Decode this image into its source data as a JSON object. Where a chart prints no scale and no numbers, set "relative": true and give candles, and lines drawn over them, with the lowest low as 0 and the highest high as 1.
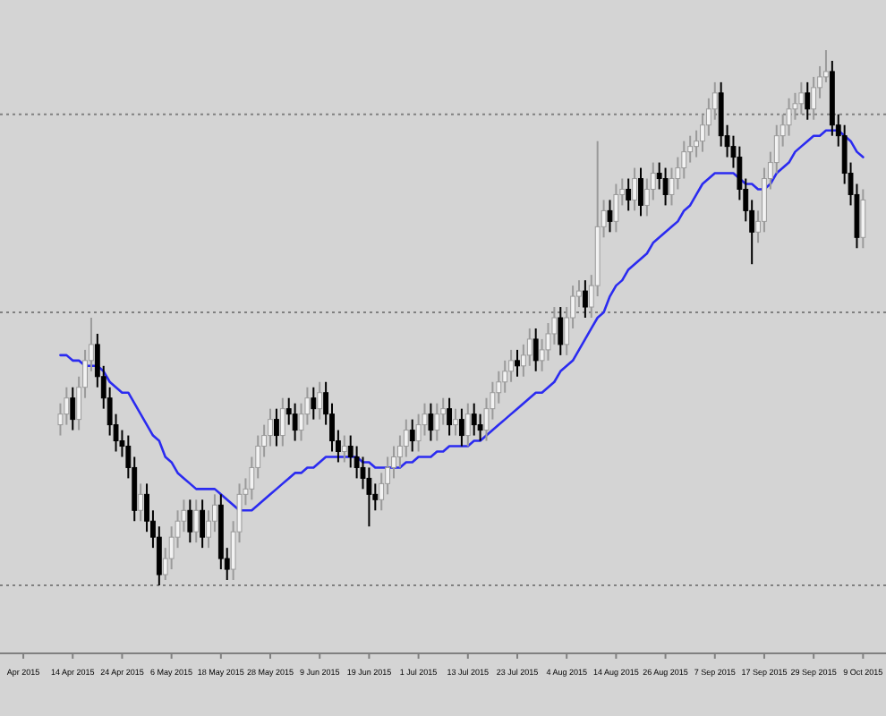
{
  "chart_data": {
    "type": "candlestick",
    "relative": true,
    "categories": [
      "Apr 2015",
      null,
      null,
      null,
      null,
      null,
      null,
      null,
      "14 Apr 2015",
      null,
      null,
      null,
      null,
      null,
      null,
      null,
      "24 Apr 2015",
      null,
      null,
      null,
      null,
      null,
      null,
      null,
      "6 May 2015",
      null,
      null,
      null,
      null,
      null,
      null,
      null,
      "18 May 2015",
      null,
      null,
      null,
      null,
      null,
      null,
      null,
      "28 May 2015",
      null,
      null,
      null,
      null,
      null,
      null,
      null,
      "9 Jun 2015",
      null,
      null,
      null,
      null,
      null,
      null,
      null,
      "19 Jun 2015",
      null,
      null,
      null,
      null,
      null,
      null,
      null,
      "1 Jul 2015",
      null,
      null,
      null,
      null,
      null,
      null,
      null,
      "13 Jul 2015",
      null,
      null,
      null,
      null,
      null,
      null,
      null,
      "23 Jul 2015",
      null,
      null,
      null,
      null,
      null,
      null,
      null,
      "4 Aug 2015",
      null,
      null,
      null,
      null,
      null,
      null,
      null,
      "14 Aug 2015",
      null,
      null,
      null,
      null,
      null,
      null,
      null,
      "26 Aug 2015",
      null,
      null,
      null,
      null,
      null,
      null,
      null,
      "7 Sep 2015",
      null,
      null,
      null,
      null,
      null,
      null,
      null,
      "17 Sep 2015",
      null,
      null,
      null,
      null,
      null,
      null,
      null,
      "29 Sep 2015",
      null,
      null,
      null,
      null,
      null,
      null,
      null,
      "9 Oct 2015"
    ],
    "ohlc": [
      null,
      null,
      null,
      null,
      null,
      null,
      [
        0.3,
        0.34,
        0.28,
        0.32
      ],
      [
        0.32,
        0.37,
        0.3,
        0.35
      ],
      [
        0.35,
        0.37,
        0.29,
        0.31
      ],
      [
        0.31,
        0.39,
        0.29,
        0.37
      ],
      [
        0.37,
        0.44,
        0.35,
        0.42
      ],
      [
        0.42,
        0.5,
        0.4,
        0.45
      ],
      [
        0.45,
        0.47,
        0.37,
        0.39
      ],
      [
        0.39,
        0.41,
        0.33,
        0.35
      ],
      [
        0.35,
        0.37,
        0.28,
        0.3
      ],
      [
        0.3,
        0.32,
        0.25,
        0.27
      ],
      [
        0.27,
        0.29,
        0.24,
        0.26
      ],
      [
        0.26,
        0.28,
        0.2,
        0.22
      ],
      [
        0.22,
        0.24,
        0.12,
        0.14
      ],
      [
        0.14,
        0.19,
        0.12,
        0.17
      ],
      [
        0.17,
        0.19,
        0.1,
        0.12
      ],
      [
        0.12,
        0.14,
        0.07,
        0.09
      ],
      [
        0.09,
        0.11,
        0,
        0.02
      ],
      [
        0.02,
        0.07,
        0.01,
        0.05
      ],
      [
        0.05,
        0.11,
        0.03,
        0.09
      ],
      [
        0.09,
        0.14,
        0.07,
        0.12
      ],
      [
        0.12,
        0.16,
        0.1,
        0.14
      ],
      [
        0.14,
        0.16,
        0.08,
        0.1
      ],
      [
        0.1,
        0.16,
        0.08,
        0.14
      ],
      [
        0.14,
        0.16,
        0.07,
        0.09
      ],
      [
        0.09,
        0.14,
        0.07,
        0.12
      ],
      [
        0.12,
        0.17,
        0.1,
        0.15
      ],
      [
        0.15,
        0.17,
        0.03,
        0.05
      ],
      [
        0.05,
        0.07,
        0.01,
        0.03
      ],
      [
        0.03,
        0.12,
        0.01,
        0.1
      ],
      [
        0.1,
        0.19,
        0.08,
        0.17
      ],
      [
        0.17,
        0.2,
        0.15,
        0.18
      ],
      [
        0.18,
        0.24,
        0.16,
        0.22
      ],
      [
        0.22,
        0.28,
        0.2,
        0.26
      ],
      [
        0.26,
        0.3,
        0.24,
        0.28
      ],
      [
        0.28,
        0.33,
        0.26,
        0.31
      ],
      [
        0.31,
        0.33,
        0.26,
        0.28
      ],
      [
        0.28,
        0.35,
        0.26,
        0.33
      ],
      [
        0.33,
        0.35,
        0.3,
        0.32
      ],
      [
        0.32,
        0.34,
        0.27,
        0.29
      ],
      [
        0.29,
        0.34,
        0.27,
        0.32
      ],
      [
        0.32,
        0.37,
        0.3,
        0.35
      ],
      [
        0.35,
        0.37,
        0.31,
        0.33
      ],
      [
        0.33,
        0.38,
        0.31,
        0.36
      ],
      [
        0.36,
        0.38,
        0.3,
        0.32
      ],
      [
        0.32,
        0.34,
        0.25,
        0.27
      ],
      [
        0.27,
        0.29,
        0.23,
        0.25
      ],
      [
        0.25,
        0.28,
        0.23,
        0.26
      ],
      [
        0.26,
        0.28,
        0.22,
        0.24
      ],
      [
        0.24,
        0.26,
        0.2,
        0.22
      ],
      [
        0.22,
        0.24,
        0.18,
        0.2
      ],
      [
        0.2,
        0.22,
        0.11,
        0.17
      ],
      [
        0.17,
        0.19,
        0.14,
        0.16
      ],
      [
        0.16,
        0.21,
        0.14,
        0.19
      ],
      [
        0.19,
        0.24,
        0.17,
        0.22
      ],
      [
        0.22,
        0.26,
        0.2,
        0.24
      ],
      [
        0.24,
        0.28,
        0.22,
        0.26
      ],
      [
        0.26,
        0.31,
        0.24,
        0.29
      ],
      [
        0.29,
        0.31,
        0.25,
        0.27
      ],
      [
        0.27,
        0.32,
        0.25,
        0.3
      ],
      [
        0.3,
        0.34,
        0.28,
        0.32
      ],
      [
        0.32,
        0.34,
        0.27,
        0.29
      ],
      [
        0.29,
        0.34,
        0.27,
        0.32
      ],
      [
        0.32,
        0.35,
        0.3,
        0.33
      ],
      [
        0.33,
        0.35,
        0.28,
        0.3
      ],
      [
        0.3,
        0.33,
        0.28,
        0.31
      ],
      [
        0.31,
        0.33,
        0.26,
        0.28
      ],
      [
        0.28,
        0.34,
        0.26,
        0.32
      ],
      [
        0.32,
        0.34,
        0.28,
        0.3
      ],
      [
        0.3,
        0.32,
        0.27,
        0.29
      ],
      [
        0.29,
        0.35,
        0.27,
        0.33
      ],
      [
        0.33,
        0.38,
        0.31,
        0.36
      ],
      [
        0.36,
        0.4,
        0.34,
        0.38
      ],
      [
        0.38,
        0.42,
        0.36,
        0.4
      ],
      [
        0.4,
        0.44,
        0.38,
        0.42
      ],
      [
        0.42,
        0.44,
        0.39,
        0.41
      ],
      [
        0.41,
        0.45,
        0.39,
        0.43
      ],
      [
        0.43,
        0.48,
        0.41,
        0.46
      ],
      [
        0.46,
        0.48,
        0.4,
        0.42
      ],
      [
        0.42,
        0.46,
        0.4,
        0.44
      ],
      [
        0.44,
        0.49,
        0.42,
        0.47
      ],
      [
        0.47,
        0.52,
        0.45,
        0.5
      ],
      [
        0.5,
        0.52,
        0.43,
        0.45
      ],
      [
        0.45,
        0.52,
        0.43,
        0.5
      ],
      [
        0.5,
        0.56,
        0.48,
        0.54
      ],
      [
        0.54,
        0.57,
        0.52,
        0.55
      ],
      [
        0.55,
        0.57,
        0.5,
        0.52
      ],
      [
        0.52,
        0.58,
        0.5,
        0.56
      ],
      [
        0.56,
        0.83,
        0.54,
        0.67
      ],
      [
        0.67,
        0.72,
        0.65,
        0.7
      ],
      [
        0.7,
        0.72,
        0.66,
        0.68
      ],
      [
        0.68,
        0.75,
        0.66,
        0.73
      ],
      [
        0.73,
        0.76,
        0.71,
        0.74
      ],
      [
        0.74,
        0.76,
        0.7,
        0.72
      ],
      [
        0.72,
        0.78,
        0.7,
        0.76
      ],
      [
        0.76,
        0.78,
        0.69,
        0.71
      ],
      [
        0.71,
        0.76,
        0.69,
        0.74
      ],
      [
        0.74,
        0.79,
        0.72,
        0.77
      ],
      [
        0.77,
        0.79,
        0.74,
        0.76
      ],
      [
        0.76,
        0.78,
        0.71,
        0.73
      ],
      [
        0.73,
        0.78,
        0.71,
        0.76
      ],
      [
        0.76,
        0.8,
        0.74,
        0.78
      ],
      [
        0.78,
        0.83,
        0.76,
        0.81
      ],
      [
        0.81,
        0.84,
        0.79,
        0.82
      ],
      [
        0.82,
        0.85,
        0.8,
        0.83
      ],
      [
        0.83,
        0.88,
        0.81,
        0.86
      ],
      [
        0.86,
        0.91,
        0.84,
        0.89
      ],
      [
        0.89,
        0.94,
        0.87,
        0.92
      ],
      [
        0.92,
        0.94,
        0.82,
        0.84
      ],
      [
        0.84,
        0.86,
        0.8,
        0.82
      ],
      [
        0.82,
        0.84,
        0.78,
        0.8
      ],
      [
        0.8,
        0.82,
        0.72,
        0.74
      ],
      [
        0.74,
        0.76,
        0.68,
        0.7
      ],
      [
        0.7,
        0.72,
        0.6,
        0.66
      ],
      [
        0.66,
        0.7,
        0.64,
        0.68
      ],
      [
        0.68,
        0.78,
        0.66,
        0.76
      ],
      [
        0.76,
        0.81,
        0.74,
        0.79
      ],
      [
        0.79,
        0.86,
        0.77,
        0.84
      ],
      [
        0.84,
        0.88,
        0.82,
        0.86
      ],
      [
        0.86,
        0.91,
        0.84,
        0.89
      ],
      [
        0.89,
        0.92,
        0.87,
        0.9
      ],
      [
        0.9,
        0.94,
        0.88,
        0.92
      ],
      [
        0.92,
        0.94,
        0.87,
        0.89
      ],
      [
        0.89,
        0.95,
        0.87,
        0.93
      ],
      [
        0.93,
        0.97,
        0.91,
        0.95
      ],
      [
        0.95,
        1,
        0.94,
        0.96
      ],
      [
        0.96,
        0.98,
        0.84,
        0.86
      ],
      [
        0.86,
        0.88,
        0.82,
        0.84
      ],
      [
        0.84,
        0.86,
        0.75,
        0.77
      ],
      [
        0.77,
        0.79,
        0.71,
        0.73
      ],
      [
        0.73,
        0.75,
        0.63,
        0.65
      ],
      [
        0.65,
        0.74,
        0.63,
        0.72
      ]
    ],
    "series": [
      {
        "type": "line",
        "color": "#2b2bf0",
        "values": [
          null,
          null,
          null,
          null,
          null,
          null,
          0.43,
          0.43,
          0.42,
          0.42,
          0.41,
          0.41,
          0.41,
          0.4,
          0.38,
          0.37,
          0.36,
          0.36,
          0.34,
          0.32,
          0.3,
          0.28,
          0.27,
          0.24,
          0.23,
          0.21,
          0.2,
          0.19,
          0.18,
          0.18,
          0.18,
          0.18,
          0.17,
          0.16,
          0.15,
          0.14,
          0.14,
          0.14,
          0.15,
          0.16,
          0.17,
          0.18,
          0.19,
          0.2,
          0.21,
          0.21,
          0.22,
          0.22,
          0.23,
          0.24,
          0.24,
          0.24,
          0.24,
          0.24,
          0.24,
          0.23,
          0.23,
          0.22,
          0.22,
          0.22,
          0.22,
          0.22,
          0.23,
          0.23,
          0.24,
          0.24,
          0.24,
          0.25,
          0.25,
          0.26,
          0.26,
          0.26,
          0.26,
          0.27,
          0.27,
          0.28,
          0.29,
          0.3,
          0.31,
          0.32,
          0.33,
          0.34,
          0.35,
          0.36,
          0.36,
          0.37,
          0.38,
          0.4,
          0.41,
          0.42,
          0.44,
          0.46,
          0.48,
          0.5,
          0.51,
          0.54,
          0.56,
          0.57,
          0.59,
          0.6,
          0.61,
          0.62,
          0.64,
          0.65,
          0.66,
          0.67,
          0.68,
          0.7,
          0.71,
          0.73,
          0.75,
          0.76,
          0.77,
          0.77,
          0.77,
          0.77,
          0.76,
          0.75,
          0.75,
          0.74,
          0.74,
          0.75,
          0.77,
          0.78,
          0.79,
          0.81,
          0.82,
          0.83,
          0.84,
          0.84,
          0.85,
          0.85,
          0.85,
          0.84,
          0.83,
          0.81,
          0.8
        ]
      }
    ],
    "ref_lines": [
      {
        "axis": "y",
        "value": 0.88,
        "color": "#808080",
        "line_style": "dotted"
      },
      {
        "axis": "y",
        "value": 0.51,
        "color": "#808080",
        "line_style": "dotted"
      },
      {
        "axis": "y",
        "value": 0,
        "color": "#808080",
        "line_style": "dotted"
      }
    ]
  }
}
